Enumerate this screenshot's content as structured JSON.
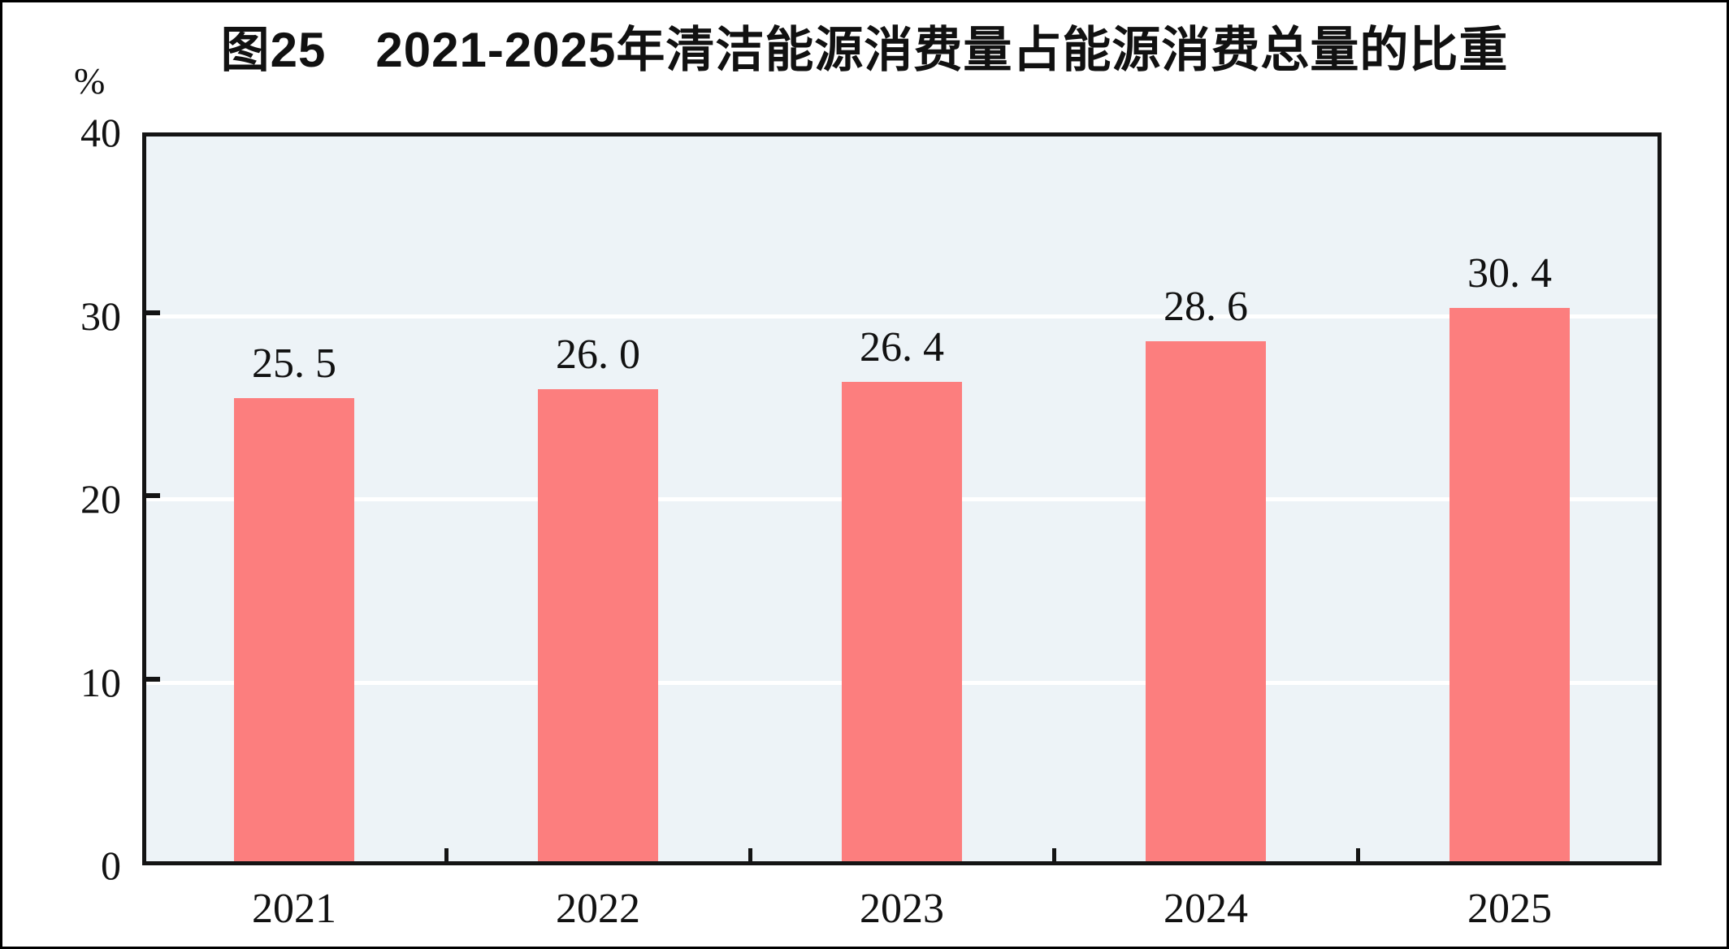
{
  "chart_data": {
    "type": "bar",
    "title": "图25　2021-2025年清洁能源消费量占能源消费总量的比重",
    "unit_label": "%",
    "categories": [
      "2021",
      "2022",
      "2023",
      "2024",
      "2025"
    ],
    "values": [
      25.5,
      26.0,
      26.4,
      28.6,
      30.4
    ],
    "value_labels": [
      "25. 5",
      "26. 0",
      "26. 4",
      "28. 6",
      "30. 4"
    ],
    "ylabel": "%",
    "xlabel": "",
    "ylim": [
      0,
      40
    ],
    "yticks": [
      0,
      10,
      20,
      30,
      40
    ],
    "grid": "horizontal-white-lines",
    "legend": "none",
    "colors": {
      "bar": "#FC7E7E",
      "plot_background": "#EDF3F7",
      "gridline": "#FFFFFF",
      "axis": "#141414",
      "text": "#111111",
      "page_background": "#FFFFFF",
      "frame_border": "#000000"
    }
  }
}
